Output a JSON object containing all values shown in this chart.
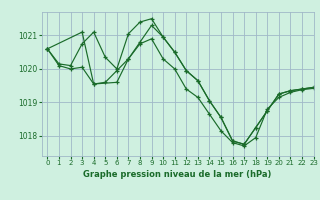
{
  "title": "Graphe pression niveau de la mer (hPa)",
  "background_color": "#cff0e0",
  "grid_color": "#a0b8c8",
  "line_color": "#1a6b2a",
  "xlim": [
    -0.5,
    23
  ],
  "ylim": [
    1017.4,
    1021.7
  ],
  "yticks": [
    1018,
    1019,
    1020,
    1021
  ],
  "xticks": [
    0,
    1,
    2,
    3,
    4,
    5,
    6,
    7,
    8,
    9,
    10,
    11,
    12,
    13,
    14,
    15,
    16,
    17,
    18,
    19,
    20,
    21,
    22,
    23
  ],
  "series1_x": [
    0,
    1,
    2,
    3,
    4,
    5,
    6,
    7,
    8,
    9,
    10,
    11,
    12,
    13,
    14,
    15,
    16,
    17,
    18,
    19,
    20,
    21,
    22,
    23
  ],
  "series1_y": [
    1020.6,
    1020.15,
    1020.1,
    1020.75,
    1021.1,
    1020.35,
    1020.0,
    1021.05,
    1021.4,
    1021.5,
    1020.95,
    1020.5,
    1019.95,
    1019.65,
    1019.05,
    1018.55,
    1017.85,
    1017.75,
    1018.25,
    1018.75,
    1019.25,
    1019.35,
    1019.4,
    1019.45
  ],
  "series2_x": [
    0,
    3,
    4,
    6,
    7,
    8,
    9,
    10,
    11,
    12,
    13,
    14,
    15,
    16,
    17,
    18,
    19,
    20,
    21,
    22,
    23
  ],
  "series2_y": [
    1020.6,
    1021.1,
    1019.55,
    1019.6,
    1020.3,
    1020.8,
    1021.3,
    1020.95,
    1020.5,
    1019.95,
    1019.65,
    1019.05,
    1018.55,
    1017.85,
    1017.75,
    1018.25,
    1018.75,
    1019.25,
    1019.35,
    1019.4,
    1019.45
  ],
  "series3_x": [
    0,
    1,
    2,
    3,
    4,
    5,
    6,
    7,
    8,
    9,
    10,
    11,
    12,
    13,
    14,
    15,
    16,
    17,
    18,
    19,
    20,
    21,
    22,
    23
  ],
  "series3_y": [
    1020.6,
    1020.1,
    1020.0,
    1020.05,
    1019.55,
    1019.6,
    1019.95,
    1020.3,
    1020.75,
    1020.9,
    1020.3,
    1020.0,
    1019.4,
    1019.15,
    1018.65,
    1018.15,
    1017.8,
    1017.7,
    1017.95,
    1018.8,
    1019.15,
    1019.3,
    1019.38,
    1019.42
  ]
}
